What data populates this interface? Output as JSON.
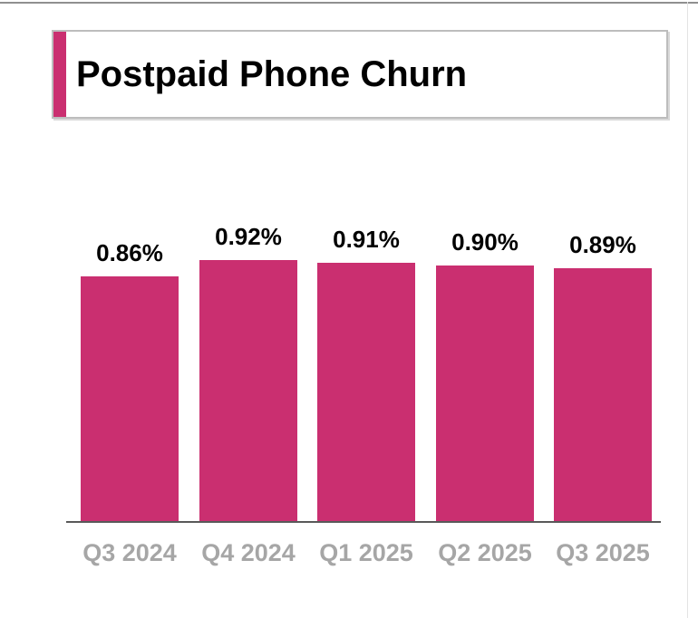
{
  "page": {
    "title": "Postpaid Phone Churn"
  },
  "colors": {
    "bar": "#ca2f70",
    "title_accent": "#ca2f70",
    "axis_line": "#595959",
    "category_label": "#a6a6a6",
    "value_label": "#000000",
    "title_card_border": "#bdbdbd",
    "top_rule": "#8f8f8f"
  },
  "chart_data": {
    "type": "bar",
    "title": "Postpaid Phone Churn",
    "categories": [
      "Q3 2024",
      "Q4 2024",
      "Q1 2025",
      "Q2 2025",
      "Q3 2025"
    ],
    "values": [
      0.86,
      0.92,
      0.91,
      0.9,
      0.89
    ],
    "value_labels": [
      "0.86%",
      "0.92%",
      "0.91%",
      "0.90%",
      "0.89%"
    ],
    "unit": "%",
    "xlabel": "",
    "ylabel": "",
    "ylim": [
      0,
      1.0
    ],
    "grid": false,
    "legend": false,
    "bar_color": "#ca2f70"
  }
}
